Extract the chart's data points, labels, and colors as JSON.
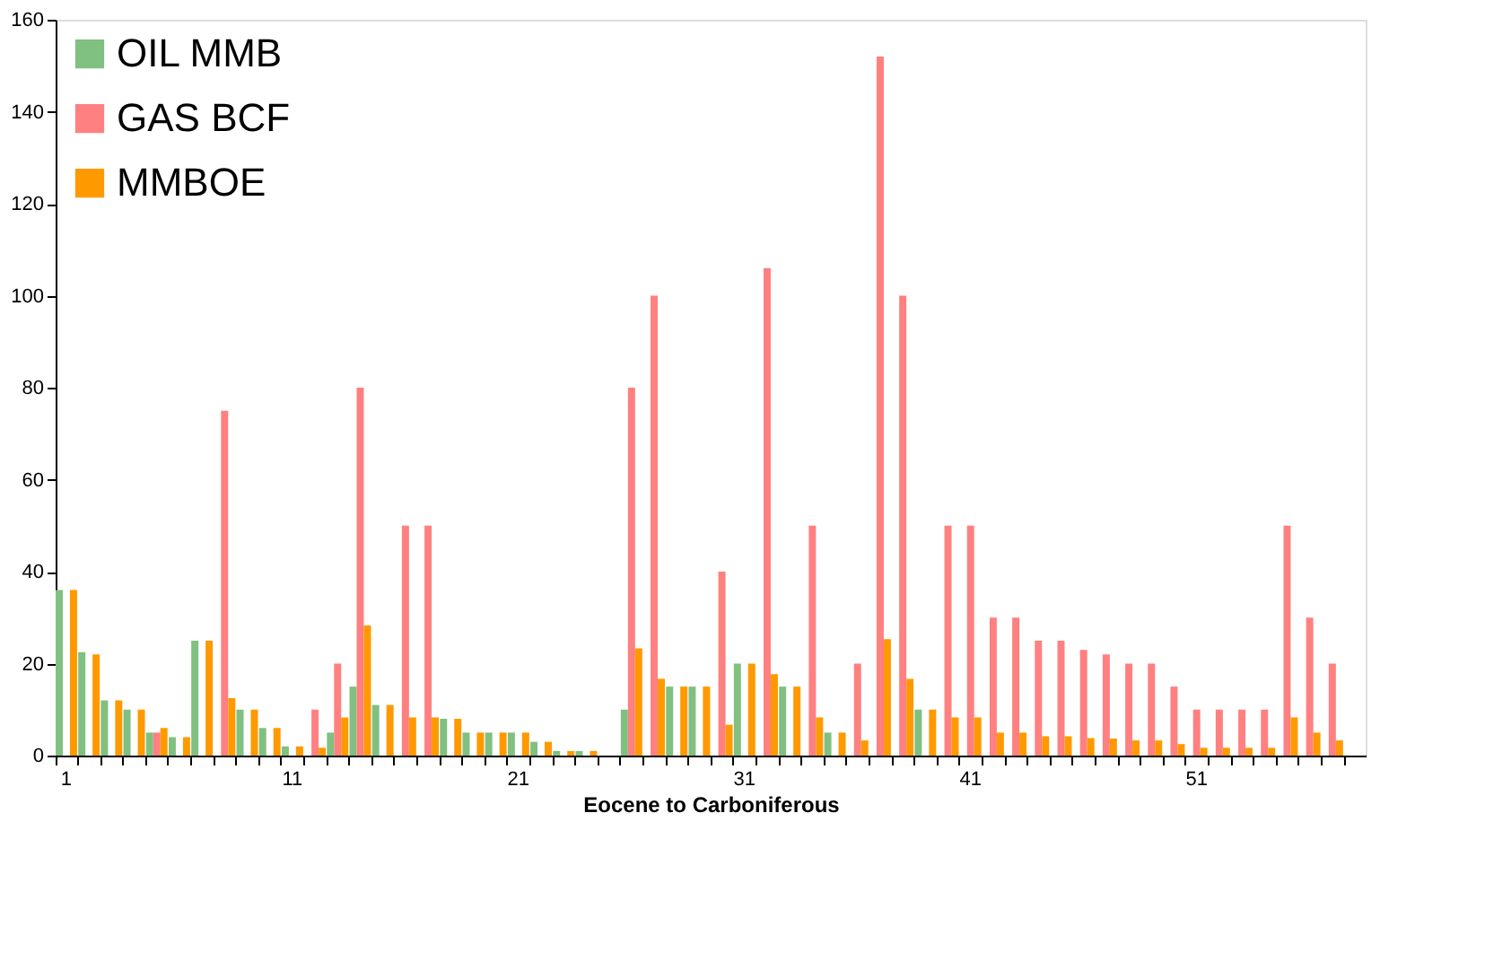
{
  "chart_data": {
    "type": "bar",
    "xlabel": "Eocene to Carboniferous",
    "categories": [
      "1",
      null,
      null,
      null,
      null,
      null,
      null,
      null,
      null,
      null,
      "11",
      null,
      null,
      null,
      null,
      null,
      null,
      null,
      null,
      null,
      "21",
      null,
      null,
      null,
      null,
      null,
      null,
      null,
      null,
      null,
      "31",
      null,
      null,
      null,
      null,
      null,
      null,
      null,
      null,
      null,
      "41",
      null,
      null,
      null,
      null,
      null,
      null,
      null,
      null,
      null,
      "51",
      null,
      null,
      null,
      null,
      null,
      null,
      null
    ],
    "series": [
      {
        "name": "OIL MMB",
        "color": "#80c080",
        "values": [
          36,
          22.5,
          12,
          10,
          5,
          4,
          25,
          null,
          10,
          6,
          2,
          null,
          5,
          15,
          11,
          null,
          null,
          8,
          5,
          5,
          5,
          3,
          1,
          1,
          null,
          10,
          null,
          15,
          15,
          null,
          20,
          null,
          15,
          null,
          5,
          null,
          null,
          null,
          10,
          null,
          null,
          null,
          null,
          null,
          null,
          null,
          null,
          null,
          null,
          null,
          null,
          null,
          null,
          null,
          null,
          null,
          null,
          null
        ]
      },
      {
        "name": "GAS BCF",
        "color": "#ff8080",
        "values": [
          null,
          null,
          null,
          null,
          5,
          null,
          null,
          75,
          null,
          null,
          null,
          10,
          20,
          80,
          null,
          50,
          50,
          null,
          null,
          null,
          null,
          null,
          null,
          null,
          null,
          80,
          100,
          null,
          null,
          40,
          null,
          106,
          null,
          50,
          null,
          20,
          152,
          100,
          null,
          50,
          50,
          30,
          30,
          25,
          25,
          23,
          22,
          20,
          20,
          15,
          10,
          10,
          10,
          10,
          50,
          30,
          20,
          null
        ]
      },
      {
        "name": "MMBOE",
        "color": "#ff9900",
        "values": [
          36,
          22,
          12,
          10,
          6,
          4,
          25,
          12.5,
          10,
          6,
          2,
          1.7,
          8.3,
          28.3,
          11,
          8.3,
          8.3,
          8,
          5,
          5,
          5,
          3,
          1,
          1,
          null,
          23.3,
          16.7,
          15,
          15,
          6.7,
          20,
          17.7,
          15,
          8.3,
          5,
          3.3,
          25.3,
          16.7,
          10,
          8.3,
          8.3,
          5,
          5,
          4.2,
          4.2,
          3.8,
          3.7,
          3.3,
          3.3,
          2.5,
          1.7,
          1.7,
          1.7,
          1.7,
          8.3,
          5,
          3.3,
          null
        ]
      }
    ],
    "ylim": [
      0,
      160
    ],
    "yticks": [
      0,
      20,
      40,
      60,
      80,
      100,
      120,
      140,
      160
    ],
    "legend": "top left",
    "grid": false
  }
}
